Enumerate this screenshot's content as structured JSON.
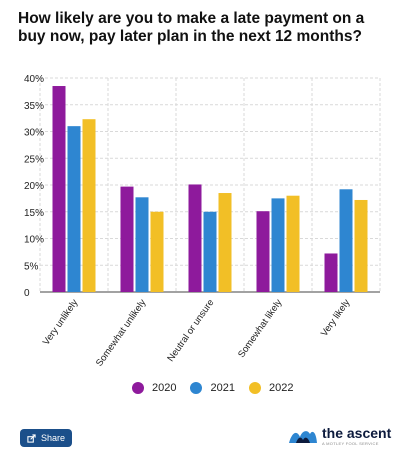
{
  "chart_data": {
    "type": "bar",
    "title": "How likely are you to make a late payment on a buy now, pay later plan in the next 12 months?",
    "categories": [
      "Very unlikely",
      "Somewhat unlikely",
      "Neutral or unsure",
      "Somewhat likely",
      "Very likely"
    ],
    "series": [
      {
        "name": "2020",
        "color": "#8e1a9c",
        "values": [
          38.5,
          19.7,
          20.1,
          15.1,
          7.2
        ]
      },
      {
        "name": "2021",
        "color": "#2e86d1",
        "values": [
          31.0,
          17.7,
          15.0,
          17.5,
          19.2
        ]
      },
      {
        "name": "2022",
        "color": "#f2bf26",
        "values": [
          32.3,
          15.0,
          18.5,
          18.0,
          17.2
        ]
      }
    ],
    "yticks": [
      "0",
      "5%",
      "10%",
      "15%",
      "20%",
      "25%",
      "30%",
      "35%",
      "40%"
    ],
    "ylim": [
      0,
      40
    ],
    "grid": true,
    "legend_position": "bottom"
  },
  "footer": {
    "share_label": "Share",
    "brand_name": "the ascent",
    "brand_tagline": "A MOTLEY FOOL SERVICE"
  }
}
